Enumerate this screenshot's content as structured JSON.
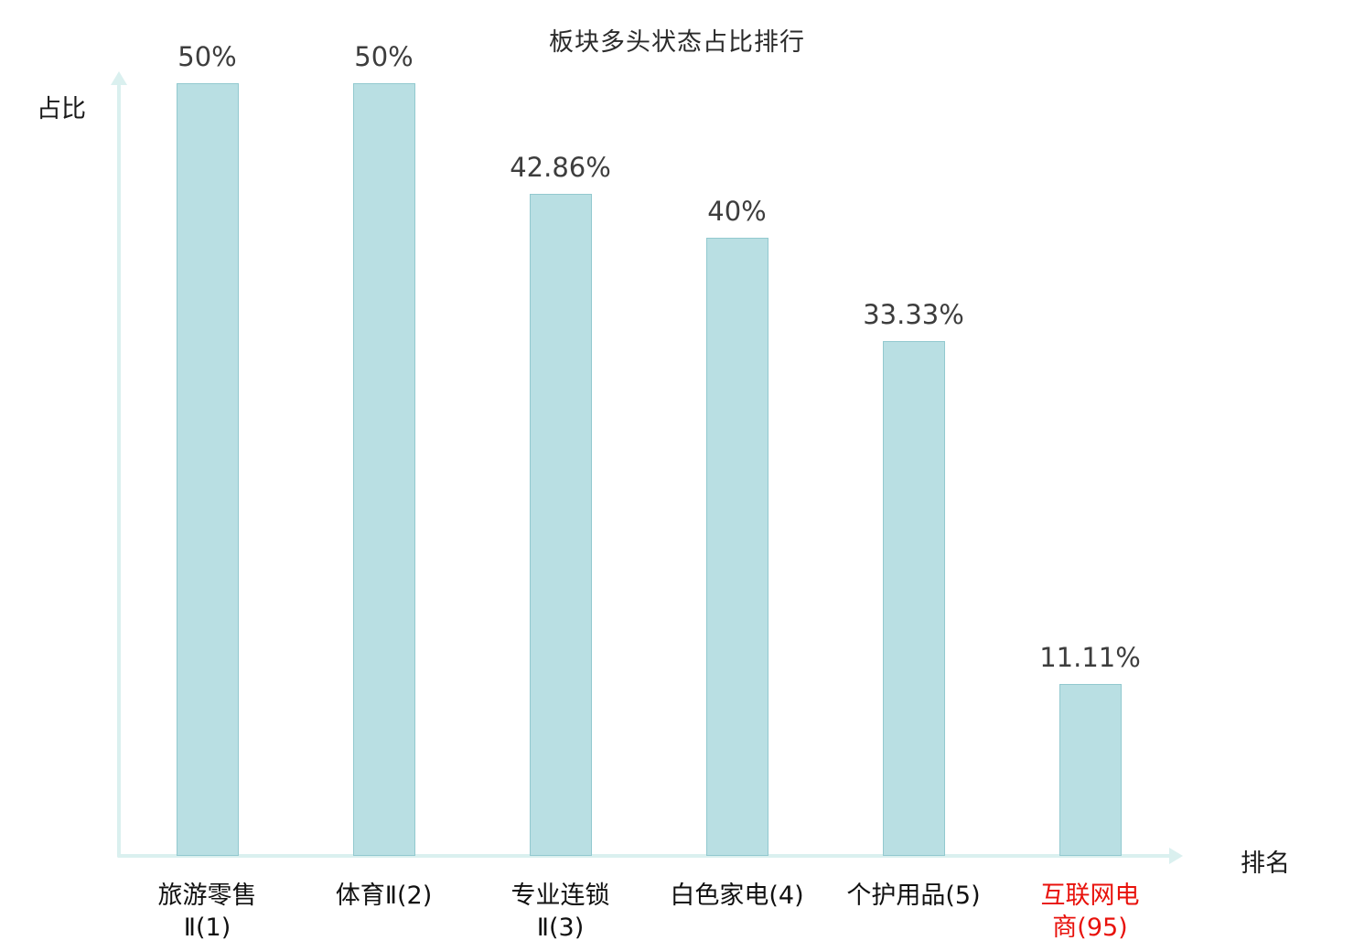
{
  "chart_data": {
    "type": "bar",
    "title": "板块多头状态占比排行",
    "xlabel": "排名",
    "ylabel": "占比",
    "categories": [
      "旅游零售Ⅱ(1)",
      "体育Ⅱ(2)",
      "专业连锁Ⅱ(3)",
      "白色家电(4)",
      "个护用品(5)",
      "互联网电商(95)"
    ],
    "category_lines": [
      [
        "旅游零售",
        "Ⅱ(1)"
      ],
      [
        "体育Ⅱ(2)"
      ],
      [
        "专业连锁",
        "Ⅱ(3)"
      ],
      [
        "白色家电(4)"
      ],
      [
        "个护用品(5)"
      ],
      [
        "互联网电",
        "商(95)"
      ]
    ],
    "values": [
      50,
      50,
      42.86,
      40,
      33.33,
      11.11
    ],
    "value_labels": [
      "50%",
      "50%",
      "42.86%",
      "40%",
      "33.33%",
      "11.11%"
    ],
    "highlight_index": 5,
    "ylim": [
      0,
      52
    ],
    "grid": false,
    "legend": "none",
    "colors": {
      "bar_fill": "#b9dfe3",
      "bar_border": "#92c9cf",
      "axis": "#daf0ef",
      "value_label": "#3d3d3d",
      "category_label": "#111111",
      "highlight_label": "#e8120c",
      "title": "#2b2b2b"
    }
  }
}
